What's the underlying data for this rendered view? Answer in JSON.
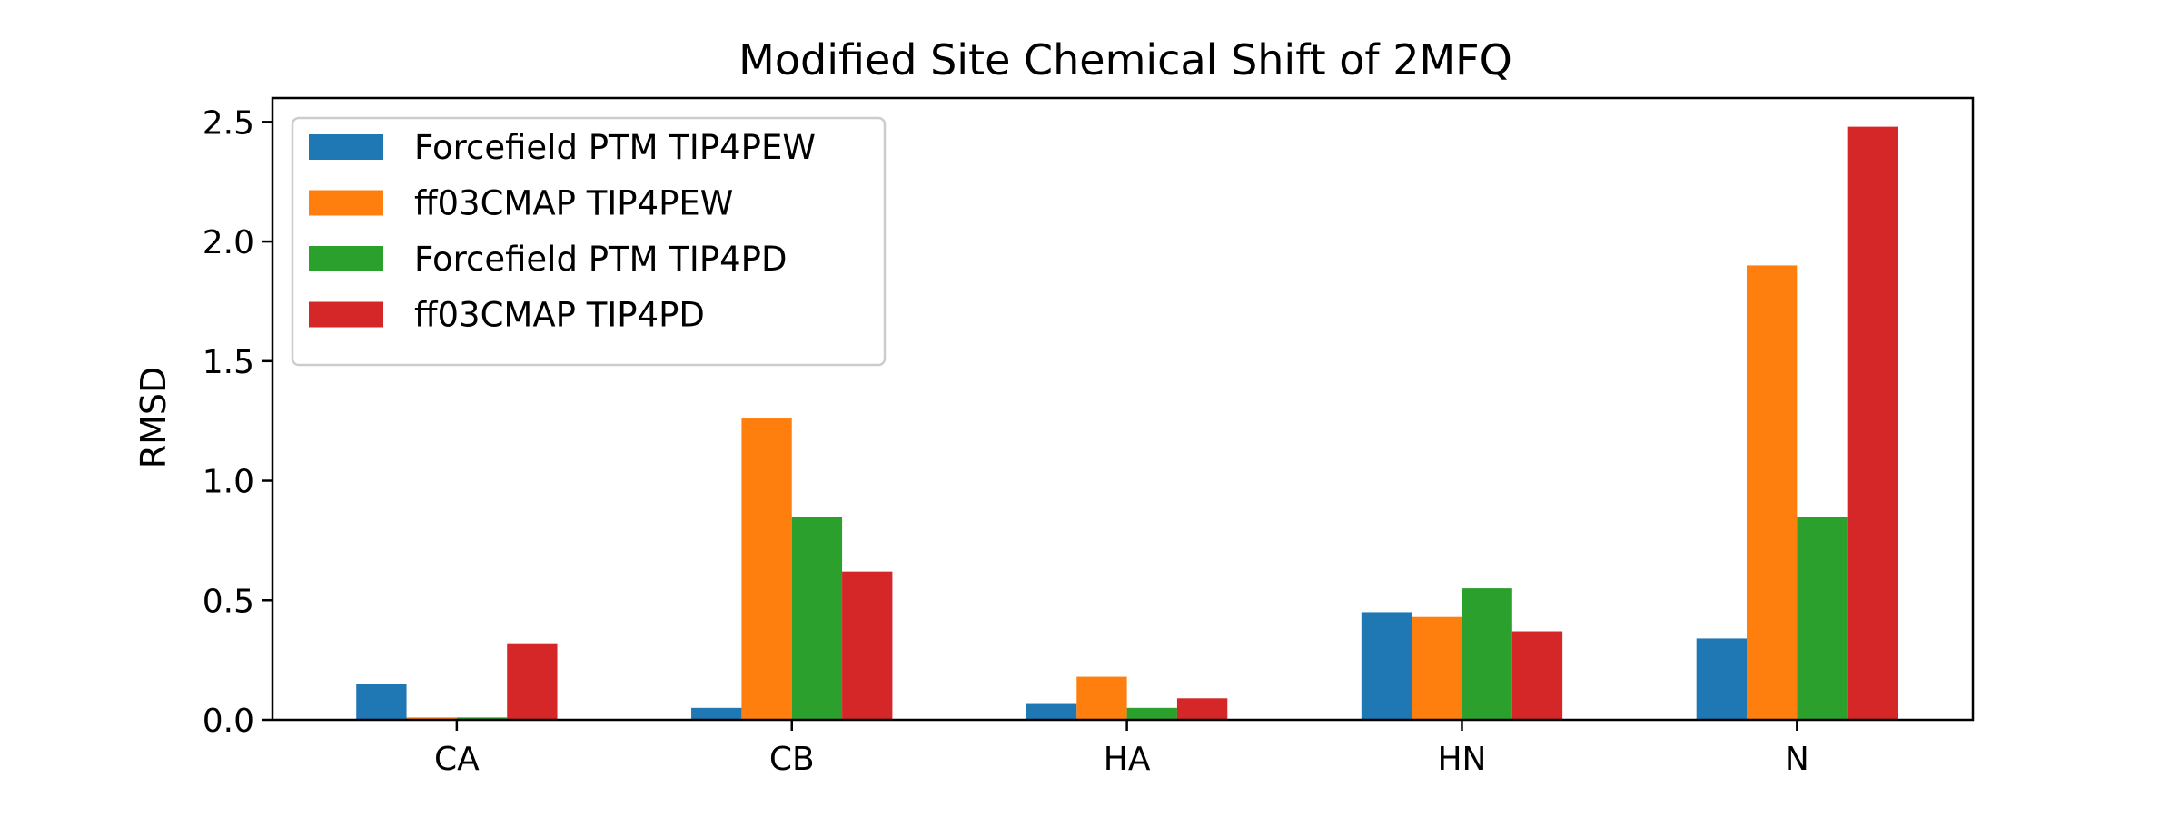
{
  "chart_data": {
    "type": "bar",
    "title": "Modified Site Chemical Shift of 2MFQ",
    "xlabel": "",
    "ylabel": "RMSD",
    "categories": [
      "CA",
      "CB",
      "HA",
      "HN",
      "N"
    ],
    "ylim": [
      0,
      2.6
    ],
    "yticks": [
      0.0,
      0.5,
      1.0,
      1.5,
      2.0,
      2.5
    ],
    "ytick_labels": [
      "0.0",
      "0.5",
      "1.0",
      "1.5",
      "2.0",
      "2.5"
    ],
    "grid": false,
    "legend": "top-left",
    "series": [
      {
        "name": "Forcefield PTM TIP4PEW",
        "color": "#1f77b4",
        "values": [
          0.15,
          0.05,
          0.07,
          0.45,
          0.34
        ]
      },
      {
        "name": "ff03CMAP TIP4PEW",
        "color": "#ff7f0e",
        "values": [
          0.01,
          1.26,
          0.18,
          0.43,
          1.9
        ]
      },
      {
        "name": "Forcefield PTM TIP4PD",
        "color": "#2ca02c",
        "values": [
          0.01,
          0.85,
          0.05,
          0.55,
          0.85
        ]
      },
      {
        "name": "ff03CMAP TIP4PD",
        "color": "#d62728",
        "values": [
          0.32,
          0.62,
          0.09,
          0.37,
          2.48
        ]
      }
    ]
  }
}
